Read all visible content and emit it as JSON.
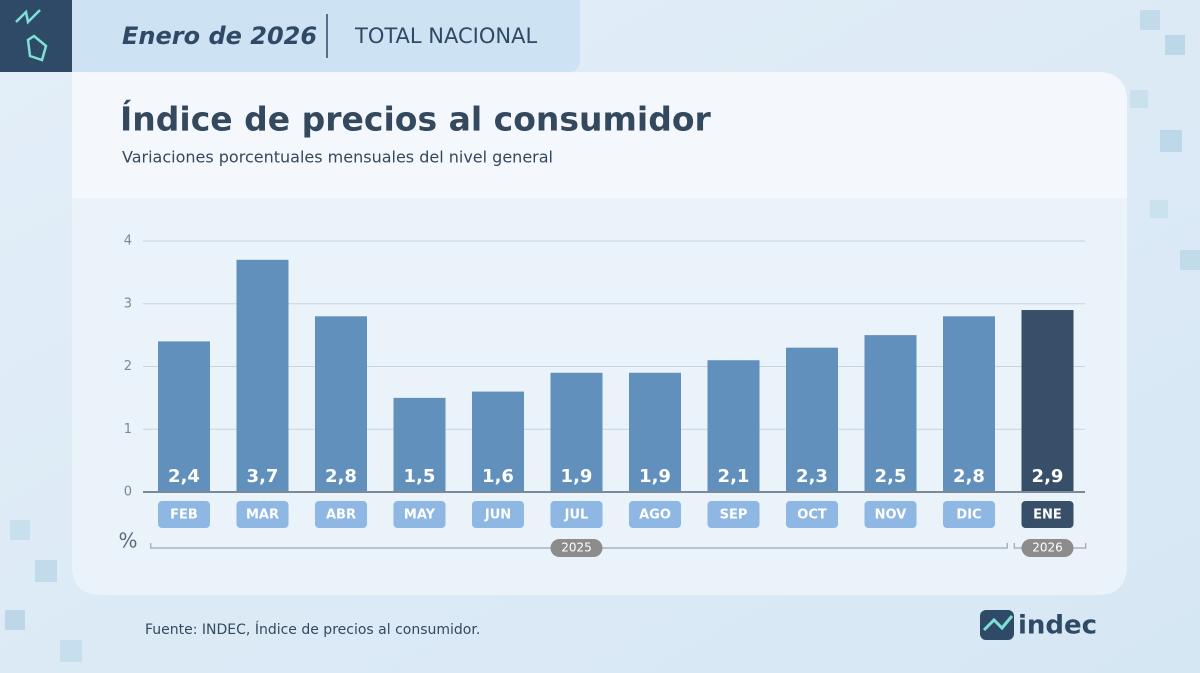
{
  "header": {
    "date": "Enero de 2026",
    "scope": "TOTAL NACIONAL"
  },
  "chart_data": {
    "type": "bar",
    "title": "Índice de precios al consumidor",
    "subtitle": "Variaciones porcentuales mensuales del nivel general",
    "ylabel": "%",
    "categories": [
      "FEB",
      "MAR",
      "ABR",
      "MAY",
      "JUN",
      "JUL",
      "AGO",
      "SEP",
      "OCT",
      "NOV",
      "DIC",
      "ENE"
    ],
    "values": [
      2.4,
      3.7,
      2.8,
      1.5,
      1.6,
      1.9,
      1.9,
      2.1,
      2.3,
      2.5,
      2.8,
      2.9
    ],
    "value_labels": [
      "2,4",
      "3,7",
      "2,8",
      "1,5",
      "1,6",
      "1,9",
      "1,9",
      "2,1",
      "2,3",
      "2,5",
      "2,8",
      "2,9"
    ],
    "colors": [
      "#6190bd",
      "#6190bd",
      "#6190bd",
      "#6190bd",
      "#6190bd",
      "#6190bd",
      "#6190bd",
      "#6190bd",
      "#6190bd",
      "#6190bd",
      "#6190bd",
      "#384f6a"
    ],
    "label_colors": [
      "#8fb7e3",
      "#8fb7e3",
      "#8fb7e3",
      "#8fb7e3",
      "#8fb7e3",
      "#8fb7e3",
      "#8fb7e3",
      "#8fb7e3",
      "#8fb7e3",
      "#8fb7e3",
      "#8fb7e3",
      "#384f6a"
    ],
    "groups": [
      {
        "label": "2025",
        "count": 11
      },
      {
        "label": "2026",
        "count": 1
      }
    ],
    "ylim": [
      0,
      4
    ],
    "yticks": [
      0,
      1,
      2,
      3,
      4
    ],
    "grid": true
  },
  "footer": {
    "source": "Fuente: INDEC, Índice de precios al consumidor.",
    "logo": "indec"
  }
}
